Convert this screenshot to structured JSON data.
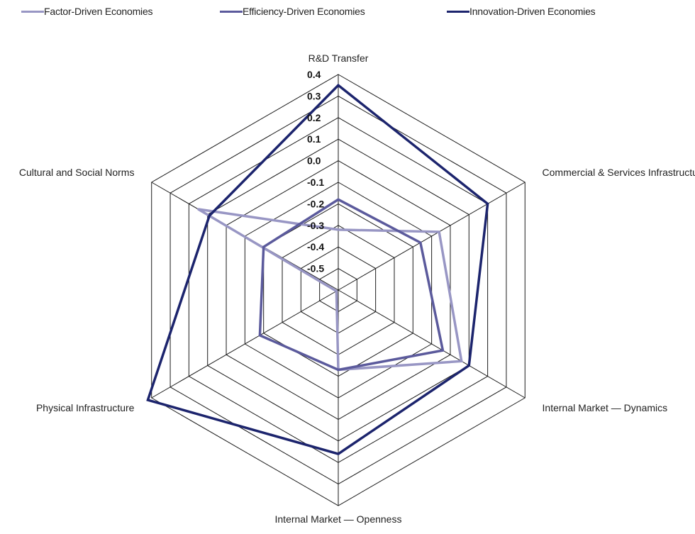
{
  "chart_data": {
    "type": "radar",
    "axes": [
      "R&D Transfer",
      "Commercial & Services Infrastructure",
      "Internal Market — Dynamics",
      "Internal Market — Openness",
      "Physical Infrastructure",
      "Cultural and Social Norms"
    ],
    "ticks": [
      "0.4",
      "0.3",
      "0.2",
      "0.1",
      "0.0",
      "-0.1",
      "-0.2",
      "-0.3",
      "-0.4",
      "-0.5"
    ],
    "range": [
      -0.6,
      0.4
    ],
    "grid": true,
    "legend_position": "top",
    "series": [
      {
        "name": "Factor-Driven Economies",
        "color": "#9896c4",
        "values": [
          -0.32,
          -0.06,
          0.06,
          -0.23,
          -0.59,
          0.15
        ]
      },
      {
        "name": "Efficiency-Driven Economies",
        "color": "#5b5a9c",
        "values": [
          -0.18,
          -0.16,
          -0.04,
          -0.23,
          -0.18,
          -0.2
        ]
      },
      {
        "name": "Innovation-Driven Economies",
        "color": "#1c246d",
        "values": [
          0.35,
          0.2,
          0.1,
          0.16,
          0.42,
          0.09
        ]
      }
    ]
  }
}
